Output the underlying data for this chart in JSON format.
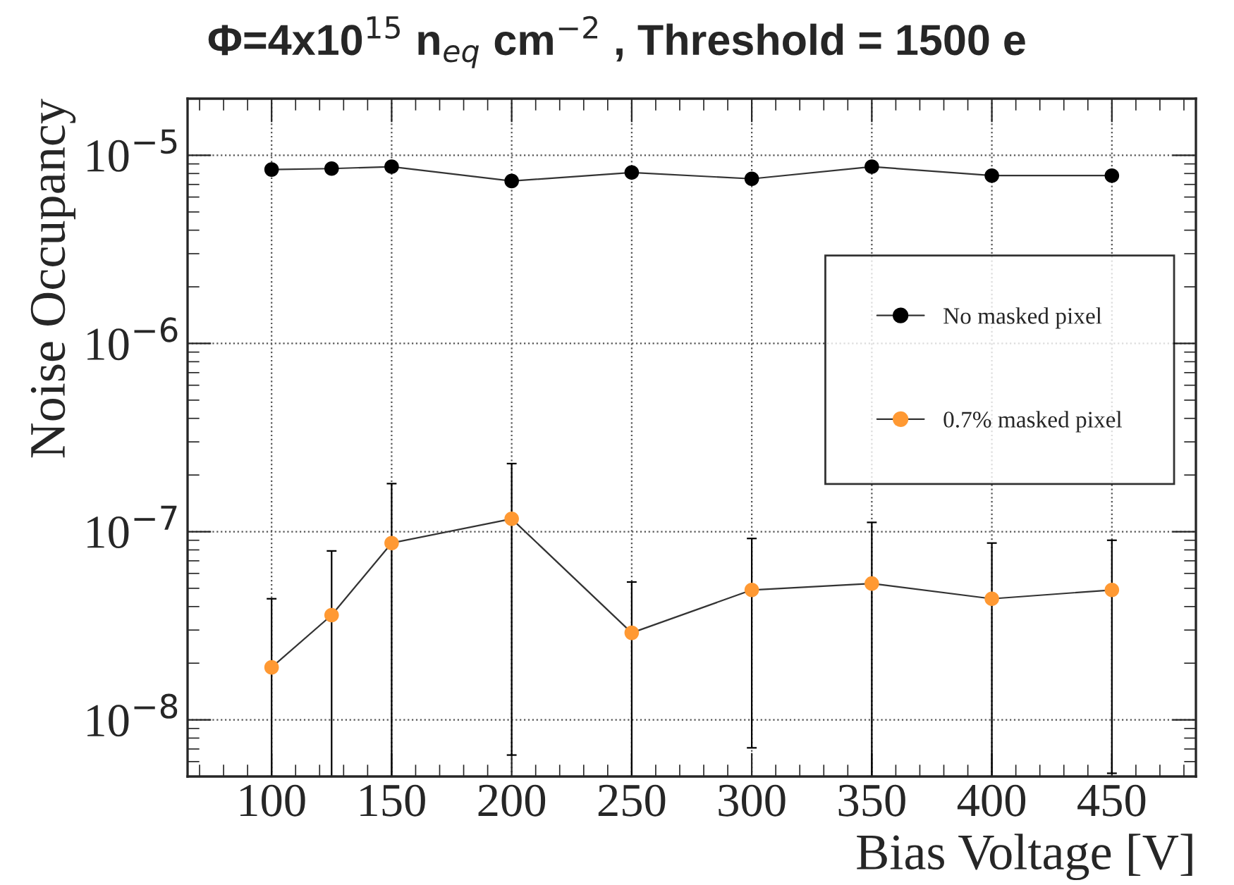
{
  "chart_data": {
    "type": "line",
    "title": "Φ=4x10$^{15}$ n$_{eq}$ cm$^{−2}$ , Threshold = 1500 e",
    "xlabel": "Bias Voltage [V]",
    "ylabel": "Noise Occupancy",
    "x": [
      100,
      125,
      150,
      200,
      250,
      300,
      350,
      400,
      450
    ],
    "series": [
      {
        "name": "No masked pixel",
        "color": "#000000",
        "values": [
          8.4e-06,
          8.5e-06,
          8.7e-06,
          7.3e-06,
          8.1e-06,
          7.5e-06,
          8.7e-06,
          7.8e-06,
          7.8e-06
        ]
      },
      {
        "name": "0.7% masked pixel",
        "color": "#ff9933",
        "values": [
          1.9e-08,
          3.6e-08,
          8.7e-08,
          1.17e-07,
          2.9e-08,
          4.9e-08,
          5.3e-08,
          4.4e-08,
          4.9e-08
        ],
        "errors": [
          [
            5e-09,
            4.4e-08
          ],
          [
            5e-09,
            7.9e-08
          ],
          [
            5e-09,
            1.8e-07
          ],
          [
            6.5e-09,
            2.3e-07
          ],
          [
            5e-09,
            5.4e-08
          ],
          [
            7.1e-09,
            9.2e-08
          ],
          [
            5e-09,
            1.12e-07
          ],
          [
            5e-09,
            8.7e-08
          ],
          [
            5.2e-09,
            9e-08
          ]
        ]
      }
    ],
    "xlim": [
      65,
      485
    ],
    "xticks": [
      100,
      150,
      200,
      250,
      300,
      350,
      400,
      450
    ],
    "ylim": [
      5e-09,
      2e-05
    ],
    "yticks": [
      {
        "value": 1e-08,
        "label": "10$^{−8}$"
      },
      {
        "value": 1e-07,
        "label": "10$^{−7}$"
      },
      {
        "value": 1e-06,
        "label": "10$^{−6}$"
      },
      {
        "value": 1e-05,
        "label": "10$^{−5}$"
      }
    ],
    "log": "y",
    "grid": true,
    "legend": "right",
    "marker": "circle",
    "line_style": "solid"
  }
}
